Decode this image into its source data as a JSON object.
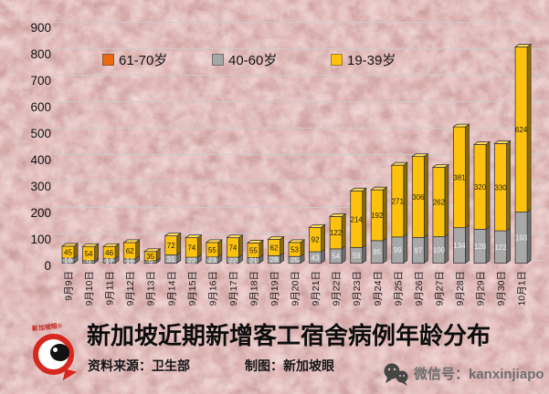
{
  "chart_data": {
    "type": "bar",
    "subtype": "stacked-3d-column",
    "title": "新加坡近期新增客工宿舍病例年龄分布",
    "categories": [
      "9月9日",
      "9月10日",
      "9月11日",
      "9月12日",
      "9月13日",
      "9月14日",
      "9月15日",
      "9月16日",
      "9月17日",
      "9月18日",
      "9月19日",
      "9月20日",
      "9月21日",
      "9月22日",
      "9月23日",
      "9月24日",
      "9月25日",
      "9月26日",
      "9月27日",
      "9月28日",
      "9月29日",
      "9月30日",
      "10月1日"
    ],
    "series": [
      {
        "name": "61-70岁",
        "color": "#eb6a0f",
        "values": [
          0,
          0,
          0,
          0,
          0,
          0,
          0,
          0,
          0,
          0,
          0,
          0,
          0,
          0,
          0,
          0,
          0,
          0,
          0,
          0,
          0,
          0,
          0
        ]
      },
      {
        "name": "40-60岁",
        "color": "#a6a6a6",
        "values": [
          19,
          9,
          17,
          16,
          9,
          31,
          22,
          23,
          22,
          21,
          28,
          25,
          43,
          54,
          59,
          85,
          99,
          97,
          100,
          134,
          128,
          122,
          193
        ]
      },
      {
        "name": "19-39岁",
        "color": "#fec10d",
        "values": [
          45,
          54,
          46,
          62,
          35,
          72,
          74,
          55,
          74,
          55,
          62,
          53,
          92,
          122,
          214,
          192,
          271,
          306,
          262,
          381,
          320,
          330,
          624
        ]
      }
    ],
    "stack_order_bottom_to_top": [
      "40-60岁",
      "19-39岁"
    ],
    "ylim": [
      0,
      900
    ],
    "ytick_interval": 100,
    "legend_position": "top",
    "grid": "horizontal",
    "data_labels": true,
    "xlabel": "",
    "ylabel": ""
  },
  "footer": {
    "source": "资料来源：卫生部",
    "credit": "制图：新加坡眼",
    "wechat": "微信号：kanxinjiapo"
  },
  "logo_text": "新加坡眼®",
  "colors": {
    "background": "#e4bfbe",
    "grid": "#cdcccc"
  }
}
